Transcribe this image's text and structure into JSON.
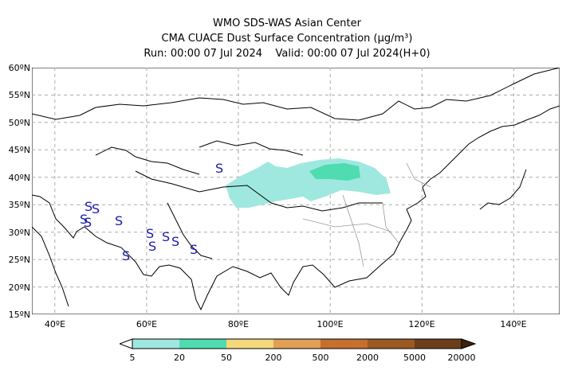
{
  "header": {
    "line1": "WMO SDS-WAS Asian Center",
    "line2": "CMA CUACE Dust Surface Concentration (μg/m³)",
    "line3_run": "Run: 00:00 07 Jul 2024",
    "line3_valid": "Valid: 00:00 07 Jul 2024(H+0)"
  },
  "map": {
    "lat_labels": [
      "60ºN",
      "55ºN",
      "50ºN",
      "45ºN",
      "40ºN",
      "35ºN",
      "30ºN",
      "25ºN",
      "20ºN",
      "15ºN"
    ],
    "lon_labels": [
      "40ºE",
      "60ºE",
      "80ºE",
      "100ºE",
      "120ºE",
      "140ºE"
    ],
    "weather_symbol": "S",
    "extent": {
      "lon_min": 35,
      "lon_max": 150,
      "lat_min": 15,
      "lat_max": 60
    }
  },
  "colorbar": {
    "ticks": [
      "5",
      "20",
      "50",
      "200",
      "500",
      "2000",
      "5000",
      "20000"
    ],
    "colors": [
      "#9fe8df",
      "#4fdcb0",
      "#f4d87c",
      "#e0a057",
      "#c66f2e",
      "#9b5a23",
      "#6b3f1a",
      "#3d2410"
    ]
  }
}
